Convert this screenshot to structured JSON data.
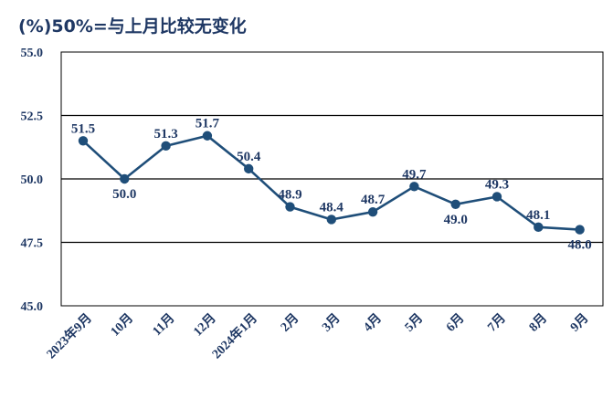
{
  "chart_data": {
    "type": "line",
    "title": "(%)50%=与上月比较无变化",
    "categories": [
      "2023年9月",
      "10月",
      "11月",
      "12月",
      "2024年1月",
      "2月",
      "3月",
      "4月",
      "5月",
      "6月",
      "7月",
      "8月",
      "9月"
    ],
    "series": [
      {
        "values": [
          51.5,
          50.0,
          51.3,
          51.7,
          50.4,
          48.9,
          48.4,
          48.7,
          49.7,
          49.0,
          49.3,
          48.1,
          48.0
        ]
      }
    ],
    "data_labels": [
      "51.5",
      "50.0",
      "51.3",
      "51.7",
      "50.4",
      "48.9",
      "48.4",
      "48.7",
      "49.7",
      "49.0",
      "49.3",
      "48.1",
      "48.0"
    ],
    "label_positions": [
      "above",
      "below",
      "above",
      "above",
      "above",
      "above",
      "above",
      "above",
      "above",
      "below",
      "above",
      "above",
      "below"
    ],
    "ylim": [
      45.0,
      55.0
    ],
    "yticks": [
      "45.0",
      "47.5",
      "50.0",
      "52.5",
      "55.0"
    ],
    "ytick_values": [
      45.0,
      47.5,
      50.0,
      52.5,
      55.0
    ],
    "grid": true,
    "xlabel": "",
    "ylabel": "",
    "colors": {
      "line": "#1f4e79",
      "marker": "#1f4e79",
      "text": "#1f3864",
      "grid": "#000000"
    }
  }
}
